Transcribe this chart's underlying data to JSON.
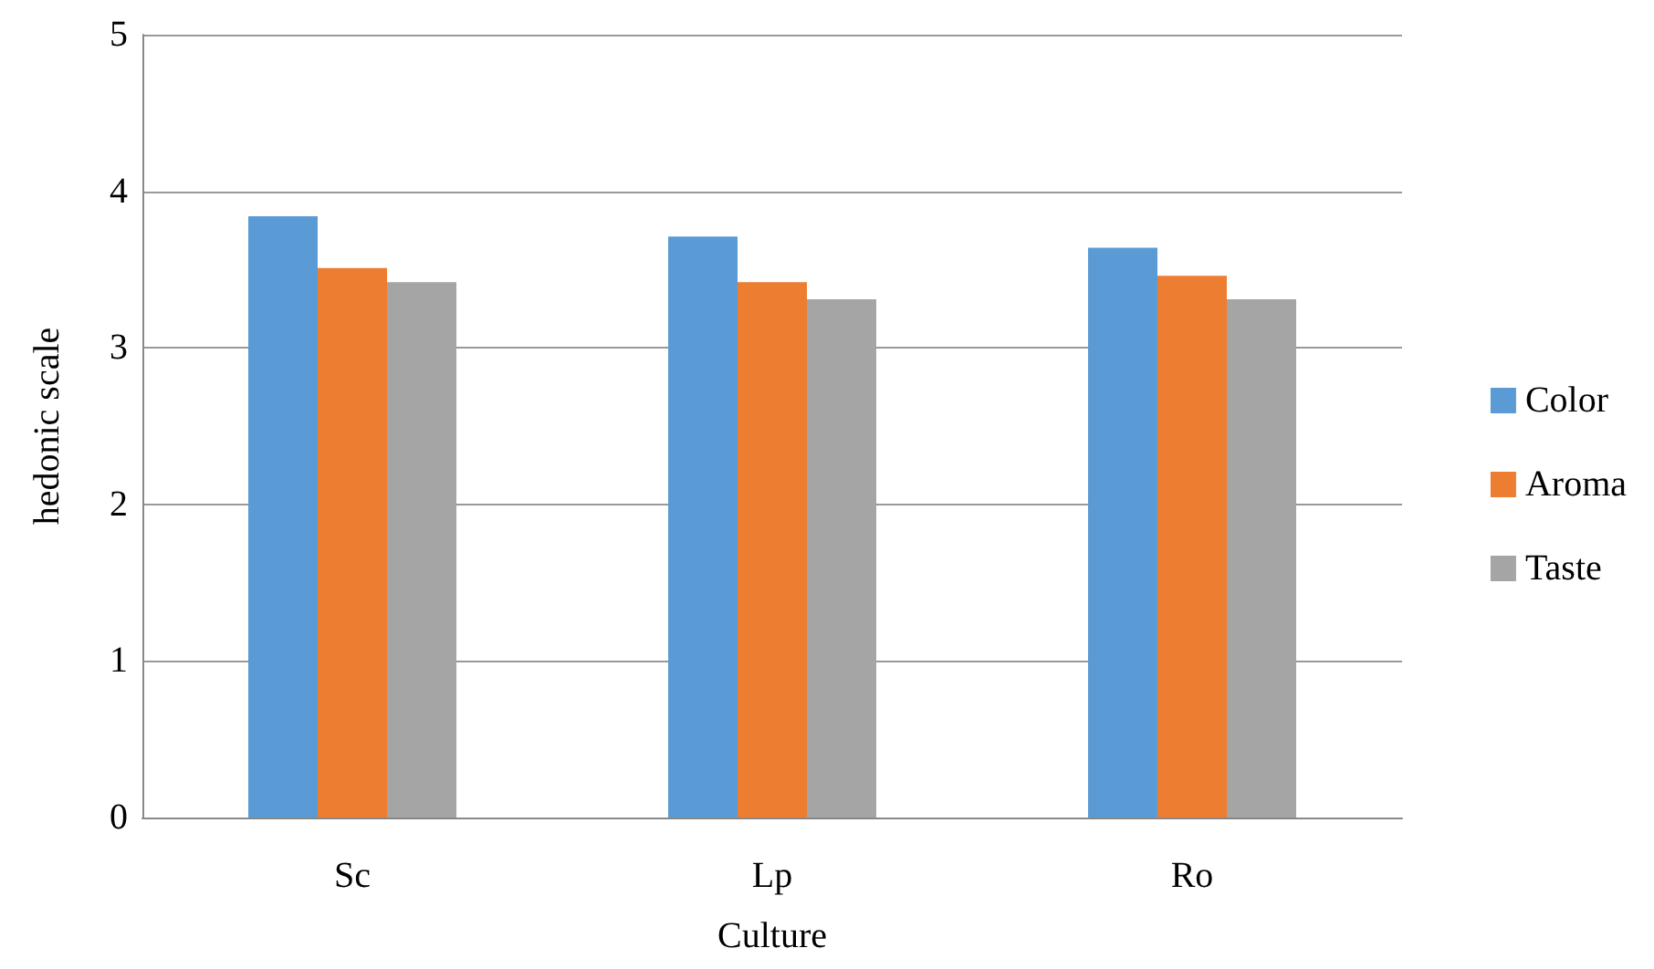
{
  "chart_data": {
    "type": "bar",
    "xlabel": "Culture",
    "ylabel": "hedonic scale",
    "categories": [
      "Sc",
      "Lp",
      "Ro"
    ],
    "series": [
      {
        "name": "Color",
        "color": "#5b9bd5",
        "values": [
          3.84,
          3.71,
          3.64
        ]
      },
      {
        "name": "Aroma",
        "color": "#ed7d31",
        "values": [
          3.51,
          3.42,
          3.46
        ]
      },
      {
        "name": "Taste",
        "color": "#a5a5a5",
        "values": [
          3.42,
          3.31,
          3.31
        ]
      }
    ],
    "ylim": [
      0,
      5
    ],
    "yticks": [
      0,
      1,
      2,
      3,
      4,
      5
    ],
    "grid": "y",
    "legend": "right"
  }
}
